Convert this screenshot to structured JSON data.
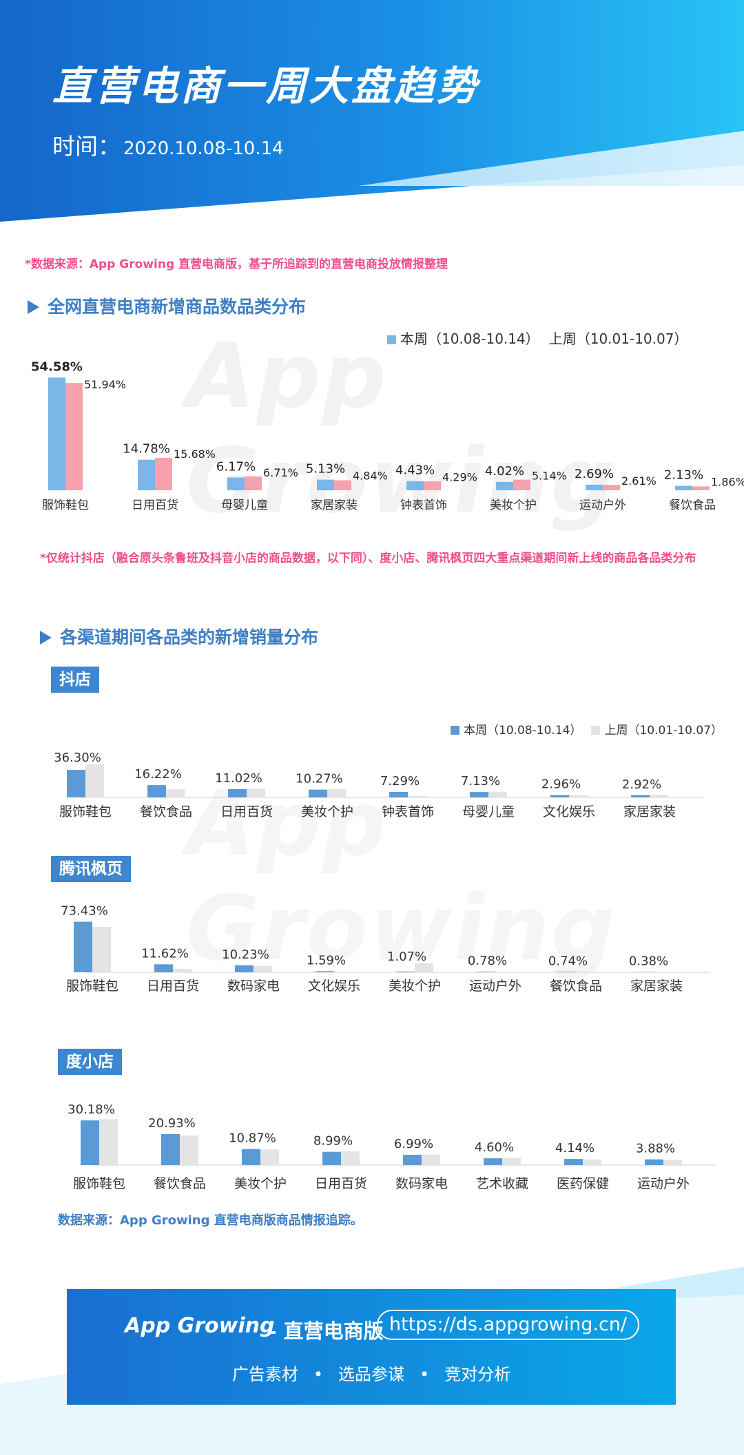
{
  "header": {
    "title": "直营电商一周大盘趋势",
    "time_label": "时间：",
    "time_range": "2020.10.08-10.14"
  },
  "colors": {
    "this_week": "#7ab6e8",
    "last_week": "#f7a0ae",
    "this_week_channel": "#5b9bd5",
    "last_week_channel": "#e4e4e4",
    "accent": "#3f7fc4",
    "pink_note": "#ee4e8c"
  },
  "notes": {
    "top_source": "*数据来源：App Growing 直营电商版，基于所追踪到的直营电商投放情报整理",
    "stat_note": "*仅统计抖店（融合原头条鲁班及抖音小店的商品数据，以下同）、度小店、腾讯枫页四大重点渠道期间新上线的商品各品类分布",
    "bottom_source": "数据来源：App Growing 直营电商版商品情报追踪。"
  },
  "watermark": "App Growing",
  "section1": {
    "title": "全网直营电商新增商品数品类分布",
    "legend": {
      "this_week": "本周（10.08-10.14）",
      "last_week": "上周（10.01-10.07）"
    }
  },
  "section2": {
    "title": "各渠道期间各品类的新增销量分布",
    "legend": {
      "this_week": "本周（10.08-10.14）",
      "last_week": "上周（10.01-10.07）"
    }
  },
  "chart_data": [
    {
      "type": "bar",
      "title": "全网直营电商新增商品数品类分布",
      "categories": [
        "服饰鞋包",
        "日用百货",
        "母婴儿童",
        "家居家装",
        "钟表首饰",
        "美妆个护",
        "运动户外",
        "餐饮食品"
      ],
      "series": [
        {
          "name": "本周（10.08-10.14）",
          "values": [
            54.58,
            14.78,
            6.17,
            5.13,
            4.43,
            4.02,
            2.69,
            2.13
          ],
          "labels": [
            "54.58%",
            "14.78%",
            "6.17%",
            "5.13%",
            "4.43%",
            "4.02%",
            "2.69%",
            "2.13%"
          ]
        },
        {
          "name": "上周（10.01-10.07）",
          "values": [
            51.94,
            15.68,
            6.71,
            4.84,
            4.29,
            5.14,
            2.61,
            1.86
          ],
          "labels": [
            "51.94%",
            "15.68%",
            "6.71%",
            "4.84%",
            "4.29%",
            "5.14%",
            "2.61%",
            "1.86%"
          ]
        }
      ],
      "legend": "top-right",
      "grid": false
    },
    {
      "type": "bar",
      "title": "抖店",
      "categories": [
        "服饰鞋包",
        "餐饮食品",
        "日用百货",
        "美妆个护",
        "钟表首饰",
        "母婴儿童",
        "文化娱乐",
        "家居家装"
      ],
      "series": [
        {
          "name": "本周（10.08-10.14）",
          "values": [
            36.3,
            16.22,
            11.02,
            10.27,
            7.29,
            7.13,
            2.96,
            2.92
          ],
          "labels": [
            "36.30%",
            "16.22%",
            "11.02%",
            "10.27%",
            "7.29%",
            "7.13%",
            "2.96%",
            "2.92%"
          ]
        },
        {
          "name": "上周（10.01-10.07）",
          "values": [
            43.5,
            10.5,
            11.2,
            11.0,
            2.0,
            7.5,
            2.8,
            3.5
          ]
        }
      ],
      "legend": "top-right",
      "grid": false
    },
    {
      "type": "bar",
      "title": "腾讯枫页",
      "categories": [
        "服饰鞋包",
        "日用百货",
        "数码家电",
        "文化娱乐",
        "美妆个护",
        "运动户外",
        "餐饮食品",
        "家居家装"
      ],
      "series": [
        {
          "name": "本周（10.08-10.14）",
          "values": [
            73.43,
            11.62,
            10.23,
            1.59,
            1.07,
            0.78,
            0.74,
            0.38
          ],
          "labels": [
            "73.43%",
            "11.62%",
            "10.23%",
            "1.59%",
            "1.07%",
            "0.78%",
            "0.74%",
            "0.38%"
          ]
        },
        {
          "name": "上周（10.01-10.07）",
          "values": [
            66.0,
            5.0,
            9.0,
            0.6,
            13.0,
            0.5,
            1.0,
            0.8
          ]
        }
      ],
      "grid": false
    },
    {
      "type": "bar",
      "title": "度小店",
      "categories": [
        "服饰鞋包",
        "餐饮食品",
        "美妆个护",
        "日用百货",
        "数码家电",
        "艺术收藏",
        "医药保健",
        "运动户外"
      ],
      "series": [
        {
          "name": "本周（10.08-10.14）",
          "values": [
            30.18,
            20.93,
            10.87,
            8.99,
            6.99,
            4.6,
            4.14,
            3.88
          ],
          "labels": [
            "30.18%",
            "20.93%",
            "10.87%",
            "8.99%",
            "6.99%",
            "4.60%",
            "4.14%",
            "3.88%"
          ]
        },
        {
          "name": "上周（10.01-10.07）",
          "values": [
            31.0,
            20.0,
            10.5,
            9.3,
            7.2,
            4.8,
            3.8,
            3.5
          ]
        }
      ],
      "grid": false
    }
  ],
  "footer": {
    "brand": "App Growing",
    "product": "– 直营电商版",
    "url": "https://ds.appgrowing.cn/",
    "tags": [
      "广告素材",
      "选品参谋",
      "竞对分析"
    ]
  }
}
